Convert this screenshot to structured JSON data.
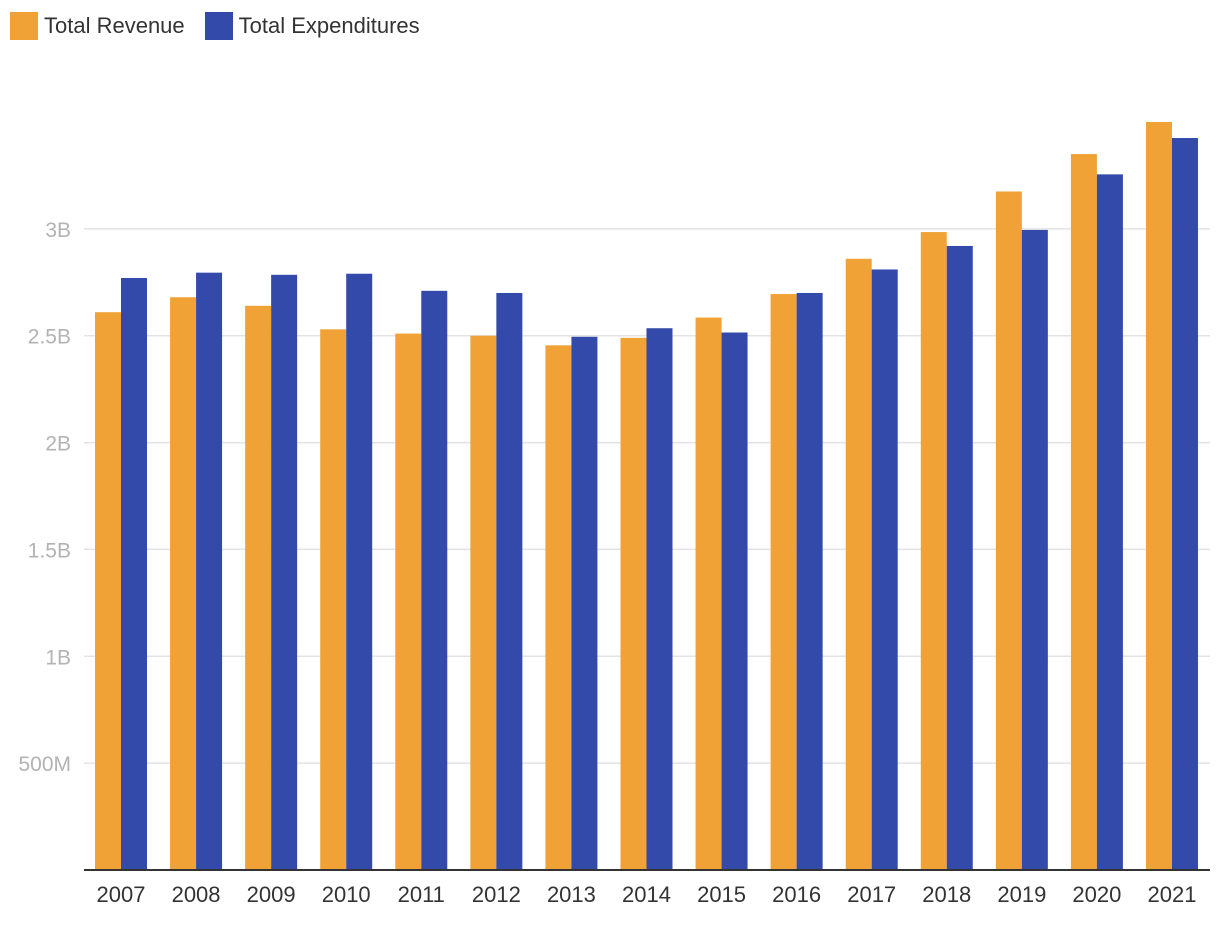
{
  "chart_data": {
    "type": "bar",
    "title": "",
    "xlabel": "",
    "ylabel": "",
    "ylim": [
      0,
      3500000000
    ],
    "grid": true,
    "legend_position": "top-left",
    "categories": [
      "2007",
      "2008",
      "2009",
      "2010",
      "2011",
      "2012",
      "2013",
      "2014",
      "2015",
      "2016",
      "2017",
      "2018",
      "2019",
      "2020",
      "2021"
    ],
    "y_ticks": [
      {
        "value": 500000000,
        "label": "500M"
      },
      {
        "value": 1000000000,
        "label": "1B"
      },
      {
        "value": 1500000000,
        "label": "1.5B"
      },
      {
        "value": 2000000000,
        "label": "2B"
      },
      {
        "value": 2500000000,
        "label": "2.5B"
      },
      {
        "value": 3000000000,
        "label": "3B"
      }
    ],
    "series": [
      {
        "name": "Total Revenue",
        "color": "#f0a236",
        "values": [
          2610000000,
          2680000000,
          2640000000,
          2530000000,
          2510000000,
          2500000000,
          2455000000,
          2490000000,
          2585000000,
          2695000000,
          2860000000,
          2985000000,
          3175000000,
          3350000000,
          3500000000
        ]
      },
      {
        "name": "Total Expenditures",
        "color": "#334aab",
        "values": [
          2770000000,
          2795000000,
          2785000000,
          2790000000,
          2710000000,
          2700000000,
          2495000000,
          2535000000,
          2515000000,
          2700000000,
          2810000000,
          2920000000,
          2995000000,
          3255000000,
          3425000000
        ]
      }
    ]
  }
}
